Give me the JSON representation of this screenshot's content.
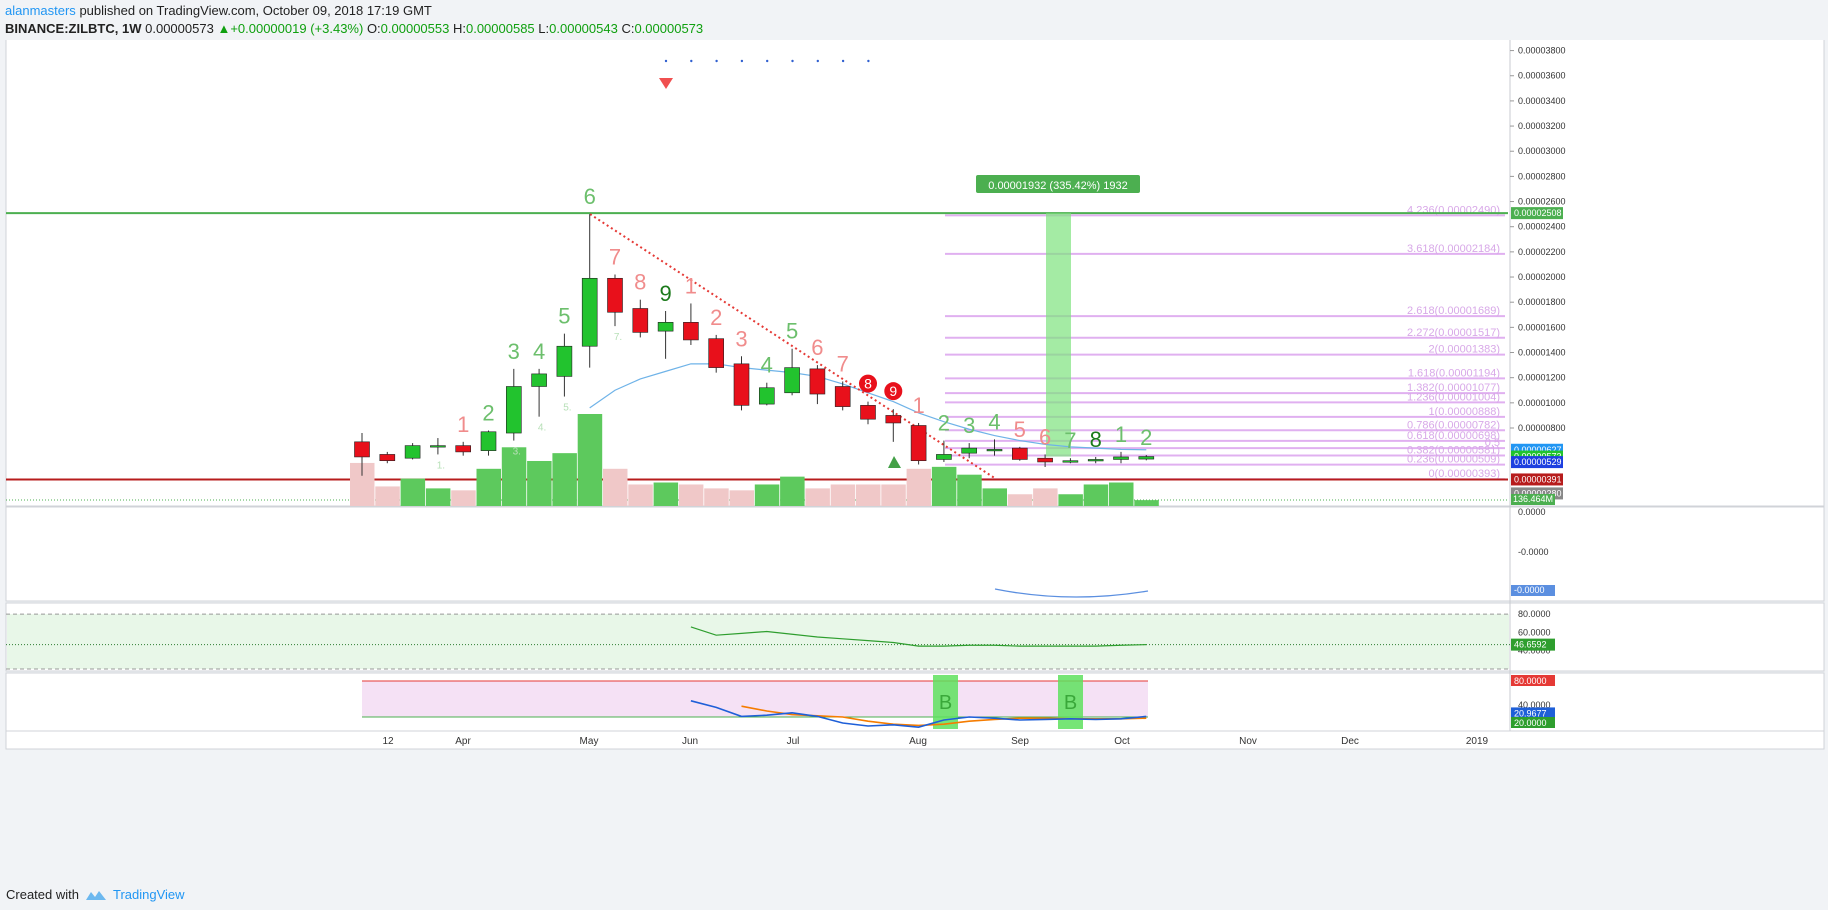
{
  "header": {
    "author": "alanmasters",
    "published_text": "published on TradingView.com, October 09, 2018 17:19 GMT",
    "symbol": "BINANCE:ZILBTC, 1W",
    "last": "0.00000573",
    "change": "+0.00000019 (+3.43%)",
    "o_label": "O:",
    "o": "0.00000553",
    "h_label": "H:",
    "h": "0.00000585",
    "l_label": "L:",
    "l": "0.00000543",
    "c_label": "C:",
    "c": "0.00000573"
  },
  "footer": {
    "created_with": "Created with",
    "brand": "TradingView"
  },
  "colors": {
    "up": "#22c32e",
    "down": "#e8101b",
    "vol_up": "#5dc95d",
    "vol_down": "#f0c8c8",
    "fib": "#e0b0f0",
    "trend": "#e53935",
    "ma": "#6fb3e8",
    "rsi": "#2e9e2e",
    "stoch_k": "#1e5fd8",
    "stoch_d": "#f57c00"
  },
  "chart_data": {
    "type": "candlestick",
    "title": "",
    "xlabel": "",
    "ylabel": "",
    "x_ticks": [
      "12",
      "Apr",
      "May",
      "Jun",
      "Jul",
      "Aug",
      "Sep",
      "Oct",
      "Nov",
      "Dec",
      "2019"
    ],
    "y_ticks": [
      "0.00003800",
      "0.00003600",
      "0.00003400",
      "0.00003200",
      "0.00003000",
      "0.00002800",
      "0.00002600",
      "0.00002400",
      "0.00002200",
      "0.00002000",
      "0.00001800",
      "0.00001600",
      "0.00001400",
      "0.00001200",
      "0.00001000",
      "0.00000800"
    ],
    "ylim": [
      1.8e-06,
      3.9e-05
    ],
    "candles": [
      {
        "o": 6.9e-06,
        "h": 7.6e-06,
        "l": 4.2e-06,
        "c": 5.7e-06
      },
      {
        "o": 5.9e-06,
        "h": 6.1e-06,
        "l": 5.2e-06,
        "c": 5.4e-06
      },
      {
        "o": 5.6e-06,
        "h": 6.8e-06,
        "l": 5.5e-06,
        "c": 6.6e-06
      },
      {
        "o": 6.5e-06,
        "h": 7.2e-06,
        "l": 5.9e-06,
        "c": 6.6e-06
      },
      {
        "o": 6.6e-06,
        "h": 6.9e-06,
        "l": 5.8e-06,
        "c": 6.1e-06
      },
      {
        "o": 6.2e-06,
        "h": 7.8e-06,
        "l": 5.8e-06,
        "c": 7.7e-06
      },
      {
        "o": 7.6e-06,
        "h": 1.27e-05,
        "l": 7e-06,
        "c": 1.13e-05
      },
      {
        "o": 1.13e-05,
        "h": 1.27e-05,
        "l": 8.9e-06,
        "c": 1.23e-05
      },
      {
        "o": 1.21e-05,
        "h": 1.55e-05,
        "l": 1.05e-05,
        "c": 1.45e-05
      },
      {
        "o": 1.45e-05,
        "h": 2.5e-05,
        "l": 1.28e-05,
        "c": 1.99e-05
      },
      {
        "o": 1.99e-05,
        "h": 2.02e-05,
        "l": 1.61e-05,
        "c": 1.72e-05
      },
      {
        "o": 1.75e-05,
        "h": 1.82e-05,
        "l": 1.52e-05,
        "c": 1.56e-05
      },
      {
        "o": 1.57e-05,
        "h": 1.73e-05,
        "l": 1.35e-05,
        "c": 1.64e-05
      },
      {
        "o": 1.64e-05,
        "h": 1.79e-05,
        "l": 1.46e-05,
        "c": 1.5e-05
      },
      {
        "o": 1.51e-05,
        "h": 1.54e-05,
        "l": 1.24e-05,
        "c": 1.28e-05
      },
      {
        "o": 1.31e-05,
        "h": 1.37e-05,
        "l": 9.4e-06,
        "c": 9.8e-06
      },
      {
        "o": 9.9e-06,
        "h": 1.16e-05,
        "l": 9.8e-06,
        "c": 1.12e-05
      },
      {
        "o": 1.08e-05,
        "h": 1.43e-05,
        "l": 1.06e-05,
        "c": 1.28e-05
      },
      {
        "o": 1.27e-05,
        "h": 1.3e-05,
        "l": 9.9e-06,
        "c": 1.07e-05
      },
      {
        "o": 1.13e-05,
        "h": 1.17e-05,
        "l": 9.4e-06,
        "c": 9.7e-06
      },
      {
        "o": 9.8e-06,
        "h": 1.01e-05,
        "l": 8.3e-06,
        "c": 8.7e-06
      },
      {
        "o": 9e-06,
        "h": 9.5e-06,
        "l": 6.9e-06,
        "c": 8.4e-06
      },
      {
        "o": 8.2e-06,
        "h": 8.4e-06,
        "l": 5.1e-06,
        "c": 5.4e-06
      },
      {
        "o": 5.5e-06,
        "h": 7e-06,
        "l": 5.3e-06,
        "c": 5.9e-06
      },
      {
        "o": 6e-06,
        "h": 6.8e-06,
        "l": 5.6e-06,
        "c": 6.4e-06
      },
      {
        "o": 6.3e-06,
        "h": 7.1e-06,
        "l": 5.8e-06,
        "c": 6.3e-06
      },
      {
        "o": 6.4e-06,
        "h": 6.5e-06,
        "l": 5.4e-06,
        "c": 5.5e-06
      },
      {
        "o": 5.6e-06,
        "h": 5.9e-06,
        "l": 4.9e-06,
        "c": 5.3e-06
      },
      {
        "o": 5.4e-06,
        "h": 5.6e-06,
        "l": 5.2e-06,
        "c": 5.4e-06
      },
      {
        "o": 5.4e-06,
        "h": 5.7e-06,
        "l": 5.2e-06,
        "c": 5.5e-06
      },
      {
        "o": 5.5e-06,
        "h": 6.1e-06,
        "l": 5.2e-06,
        "c": 5.7e-06
      },
      {
        "o": 5.53e-06,
        "h": 5.85e-06,
        "l": 5.43e-06,
        "c": 5.73e-06
      }
    ],
    "volume": [
      22,
      10,
      14,
      9,
      8,
      19,
      30,
      23,
      27,
      47,
      19,
      11,
      12,
      11,
      9,
      8,
      11,
      15,
      9,
      11,
      11,
      11,
      19,
      20,
      16,
      9,
      6,
      9,
      6,
      11,
      12,
      3
    ],
    "moving_average": [
      null,
      null,
      null,
      null,
      null,
      null,
      null,
      null,
      null,
      9.6e-06,
      1.1e-05,
      1.19e-05,
      1.25e-05,
      1.31e-05,
      1.31e-05,
      1.28e-05,
      1.26e-05,
      1.24e-05,
      1.21e-05,
      1.15e-05,
      1.08e-05,
      1.01e-05,
      9.2e-06,
      8.5e-06,
      7.9e-06,
      7.4e-06,
      7e-06,
      6.7e-06,
      6.5e-06,
      6.4e-06,
      6.3e-06,
      6.27e-06
    ],
    "count_labels_upper": [
      "",
      "",
      "",
      "",
      "1",
      "2",
      "3",
      "4",
      "5",
      "6",
      "7",
      "8",
      "9",
      "1",
      "2",
      "3",
      "4",
      "5",
      "6",
      "7",
      "8",
      "9",
      "1",
      "2",
      "3",
      "4",
      "5",
      "6",
      "7",
      "8",
      "1",
      "2"
    ],
    "count_labels_lower": [
      "",
      "",
      "",
      "1.",
      "",
      "",
      "3.",
      "4.",
      "5.",
      "",
      "7.",
      "",
      "",
      "",
      "",
      "",
      "",
      "",
      "",
      "",
      "",
      "",
      "",
      "",
      "",
      "",
      "",
      "",
      "",
      "",
      "",
      ""
    ],
    "fib_levels": [
      {
        "label": "4.236(0.00002490)",
        "value": 2.49e-05
      },
      {
        "label": "3.618(0.00002184)",
        "value": 2.184e-05
      },
      {
        "label": "2.618(0.00001689)",
        "value": 1.689e-05
      },
      {
        "label": "2.272(0.00001517)",
        "value": 1.517e-05
      },
      {
        "label": "2(0.00001383)",
        "value": 1.383e-05
      },
      {
        "label": "1.618(0.00001194)",
        "value": 1.194e-05
      },
      {
        "label": "1.382(0.00001077)",
        "value": 1.077e-05
      },
      {
        "label": "1.236(0.00001004)",
        "value": 1.004e-05
      },
      {
        "label": "1(0.00000888)",
        "value": 8.88e-06
      },
      {
        "label": "0.786(0.00000782)",
        "value": 7.82e-06
      },
      {
        "label": "0.618(0.00000698)",
        "value": 6.98e-06
      },
      {
        "label": "0.5",
        "value": 6.4e-06
      },
      {
        "label": "0.382(0.00000581)",
        "value": 5.81e-06
      },
      {
        "label": "0.236(0.00000509)",
        "value": 5.09e-06
      },
      {
        "label": "0(0.00000393)",
        "value": 3.93e-06
      }
    ],
    "horizontal_levels": [
      {
        "value": 2.508e-05,
        "label": "0.00002508",
        "color": "#4caf50"
      },
      {
        "value": 3.91e-06,
        "label": "0.00000391",
        "color": "#b71c1c"
      }
    ],
    "price_tags": [
      {
        "value": 6.27e-06,
        "label": "0.00000627",
        "color": "#2196f3"
      },
      {
        "value": 5.73e-06,
        "label": "0.00000573",
        "color": "#22c32e"
      },
      {
        "value": 5.29e-06,
        "label": "0.00000529",
        "color": "#1e40e0"
      },
      {
        "value": 2.8e-06,
        "label": "0.00000280",
        "color": "#888888"
      }
    ],
    "volume_tag": "136.464M",
    "measure_label": "0.00001932 (335.42%) 1932",
    "panel2": {
      "ticks": [
        "0.0000",
        "-0.0000"
      ],
      "tag": "-0.0000"
    },
    "rsi": {
      "ticks": [
        "80.0000",
        "60.0000",
        "40.0000"
      ],
      "tag": "46.6592",
      "values": [
        null,
        null,
        null,
        null,
        null,
        null,
        null,
        null,
        null,
        null,
        null,
        null,
        null,
        66,
        57,
        59,
        61,
        58,
        55,
        53,
        51,
        49,
        45,
        45,
        46,
        46,
        45,
        45,
        45,
        45,
        46,
        46.66
      ]
    },
    "stoch": {
      "ticks": [
        "80.0000",
        "40.0000",
        "20.0000"
      ],
      "tags": [
        "80.0000",
        "20.9677",
        "20.0000"
      ],
      "k": [
        null,
        null,
        null,
        null,
        null,
        null,
        null,
        null,
        null,
        null,
        null,
        null,
        null,
        47,
        36,
        21,
        23,
        27,
        21,
        10,
        5,
        7,
        3,
        15,
        20,
        18,
        15,
        16,
        17,
        16,
        17,
        20.97
      ],
      "d": [
        null,
        null,
        null,
        null,
        null,
        null,
        null,
        null,
        null,
        null,
        null,
        null,
        null,
        null,
        null,
        38,
        30,
        24,
        22,
        20,
        13,
        8,
        6,
        8,
        13,
        16,
        18,
        18,
        17,
        17,
        17,
        18
      ],
      "buy_label": "B"
    }
  }
}
